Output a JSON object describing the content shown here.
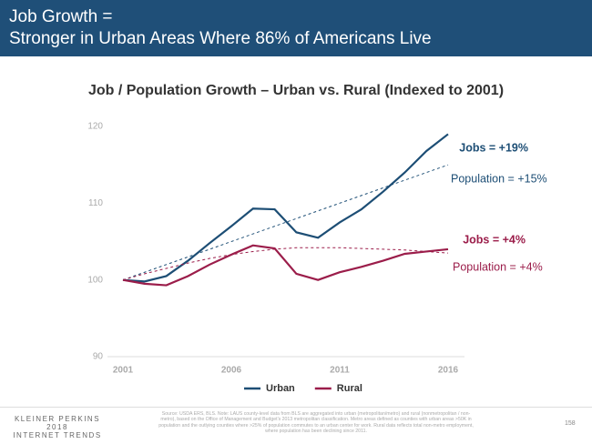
{
  "header": {
    "title": [
      "Job Growth =",
      "Stronger in Urban Areas Where 86% of Americans Live"
    ]
  },
  "chart_data": {
    "type": "line",
    "title": "Job / Population Growth – Urban vs. Rural (Indexed to 2001)",
    "x": [
      2001,
      2002,
      2003,
      2004,
      2005,
      2006,
      2007,
      2008,
      2009,
      2010,
      2011,
      2012,
      2013,
      2014,
      2015,
      2016
    ],
    "series": [
      {
        "name": "Urban",
        "color": "#1d4e75",
        "dashed": false,
        "values": [
          100,
          99.8,
          100.5,
          102.5,
          104.8,
          107,
          109.3,
          109.2,
          106.2,
          105.5,
          107.5,
          109.2,
          111.5,
          114,
          116.8,
          119
        ]
      },
      {
        "name": "Rural",
        "color": "#9b1d4a",
        "dashed": false,
        "values": [
          100,
          99.5,
          99.3,
          100.5,
          102,
          103.3,
          104.5,
          104.1,
          100.8,
          100,
          101,
          101.7,
          102.5,
          103.4,
          103.7,
          104
        ]
      },
      {
        "color": "#1d4e75",
        "dashed": true,
        "values": [
          100,
          101,
          102,
          103,
          104,
          105,
          106,
          107,
          108,
          109,
          110,
          111,
          112,
          113,
          114,
          115
        ]
      },
      {
        "color": "#9b1d4a",
        "dashed": true,
        "values": [
          100,
          100.8,
          101.5,
          102.2,
          102.8,
          103.3,
          103.7,
          104,
          104.2,
          104.2,
          104.2,
          104.1,
          104,
          103.9,
          103.7,
          103.5
        ]
      }
    ],
    "annotations": [
      {
        "text": "Jobs = +19%",
        "color": "#1d4e75",
        "bold": true
      },
      {
        "text": "Population = +15%",
        "color": "#1d4e75",
        "bold": false
      },
      {
        "text": "Jobs = +4%",
        "color": "#9b1d4a",
        "bold": true
      },
      {
        "text": "Population = +4%",
        "color": "#9b1d4a",
        "bold": false
      }
    ],
    "xlim": [
      2001,
      2016
    ],
    "xticks": [
      2001,
      2006,
      2011,
      2016
    ],
    "ylim": [
      90,
      120
    ],
    "yticks": [
      90,
      100,
      110,
      120
    ],
    "grid": false
  },
  "footer": {
    "brand": [
      "KLEINER PERKINS",
      "2018",
      "INTERNET TRENDS"
    ],
    "source": "Source: USDA ERS, BLS. Note: LAUS county-level data from BLS are aggregated into urban (metropolitan/metro) and rural (nonmetropolitan / non-metro), based on the Office of Management and Budget's 2013 metropolitan classification. Metro areas defined as counties with urban areas >50K in population and the outlying counties where >25% of population commutes to an urban center for work. Rural data reflects total non-metro employment, where population has been declining since 2011.",
    "page": 158
  }
}
